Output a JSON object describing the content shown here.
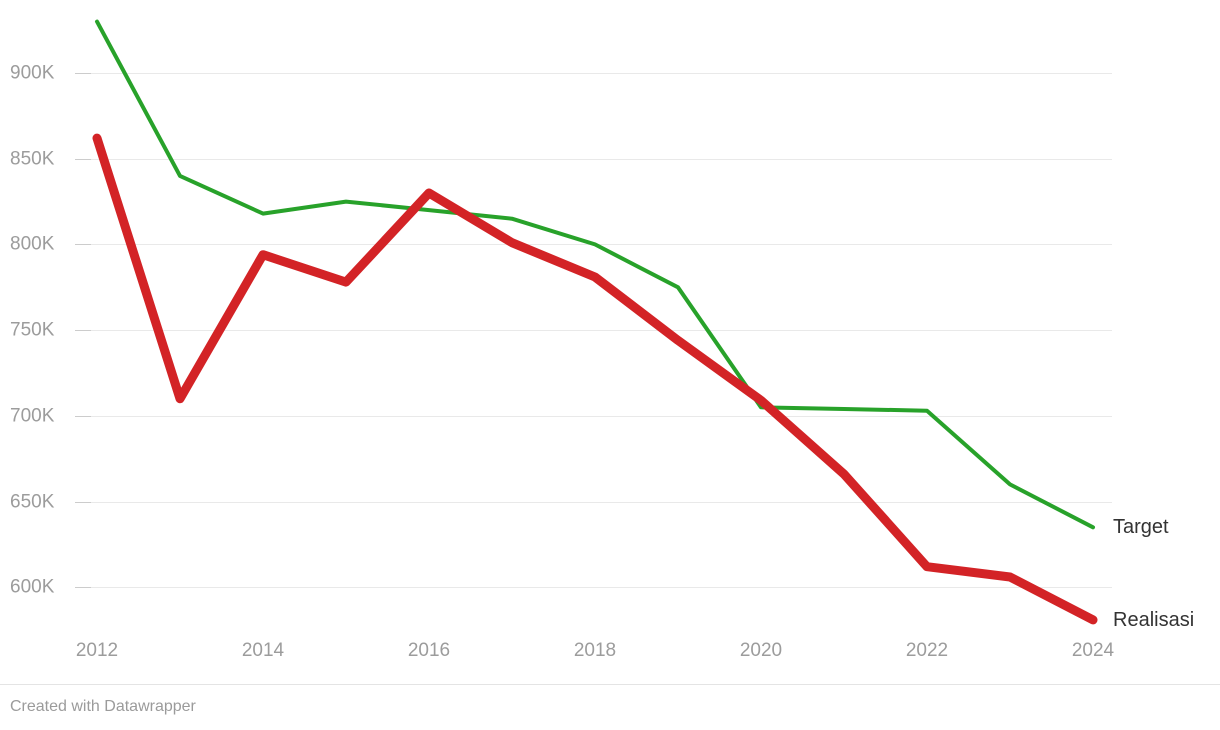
{
  "chart_data": {
    "type": "line",
    "x": [
      2012,
      2013,
      2014,
      2015,
      2016,
      2017,
      2018,
      2019,
      2020,
      2021,
      2022,
      2023,
      2024
    ],
    "series": [
      {
        "name": "Target",
        "color": "#28a22a",
        "stroke_width": 4,
        "values": [
          930000,
          840000,
          818000,
          825000,
          820000,
          815000,
          800000,
          775000,
          705000,
          704000,
          703000,
          660000,
          635000
        ]
      },
      {
        "name": "Realisasi",
        "color": "#d32326",
        "stroke_width": 9,
        "values": [
          862000,
          710000,
          794000,
          778000,
          830000,
          801000,
          781000,
          744000,
          709000,
          666000,
          612000,
          606000,
          581000
        ]
      }
    ],
    "title": "",
    "xlabel": "",
    "ylabel": "",
    "ylim": [
      575000,
      935000
    ],
    "y_ticks": [
      {
        "value": 900000,
        "label": "900K"
      },
      {
        "value": 850000,
        "label": "850K"
      },
      {
        "value": 800000,
        "label": "800K"
      },
      {
        "value": 750000,
        "label": "750K"
      },
      {
        "value": 700000,
        "label": "700K"
      },
      {
        "value": 650000,
        "label": "650K"
      },
      {
        "value": 600000,
        "label": "600K"
      }
    ],
    "x_tick_labels": [
      "2012",
      "2014",
      "2016",
      "2018",
      "2020",
      "2022",
      "2024"
    ],
    "grid": "horizontal",
    "legend_position": "direct-labels-right"
  },
  "footer": {
    "attribution": "Created with Datawrapper"
  },
  "colors": {
    "target_line": "#28a22a",
    "realisasi_line": "#d32326",
    "gridline": "#e9e9e9",
    "tick_stub": "#cccccc",
    "axis_text": "#9c9c9c",
    "series_label_text": "#333333",
    "footer_text": "#9b9b9b"
  }
}
